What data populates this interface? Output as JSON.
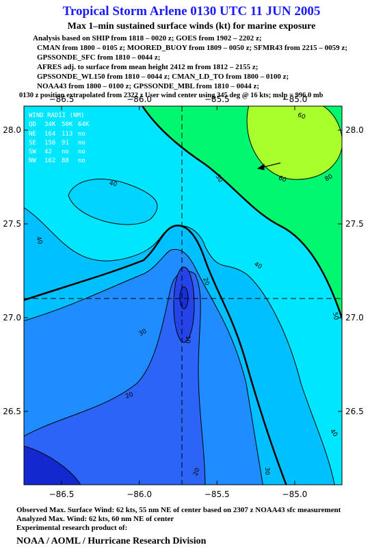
{
  "header": {
    "title": "Tropical Storm Arlene 0130 UTC 11 JUN 2005",
    "subtitle": "Max 1–min sustained surface winds (kt) for marine exposure",
    "notes": [
      "Analysis based on  SHIP from 1818 – 0020 z;  GOES from 1902 – 2202 z;",
      "CMAN from 1800 – 0105 z;  MOORED_BUOY from 1809 – 0050 z;  SFMR43 from 2215 – 0059 z;",
      "GPSSONDE_SFC from 1810 – 0044 z;",
      "AFRES adj. to surface from mean height 2412 m from 1812 – 2155 z;",
      "GPSSONDE_WL150 from 1810 – 0044 z;  CMAN_LD_TO from 1800 – 0100 z;",
      "NOAA43 from 1800 – 0100 z;  GPSSONDE_MBL from 1810 – 0044 z;",
      "0130 z position extrapolated from 2322 z User wind center using 345 deg @ 16 kts; mslp = 996.0 mb"
    ]
  },
  "map": {
    "xlim": [
      -86.742,
      -84.696
    ],
    "ylim": [
      26.109,
      28.128
    ],
    "xticks": [
      {
        "value": -86.5,
        "label": "−86.5"
      },
      {
        "value": -86.0,
        "label": "−86.0"
      },
      {
        "value": -85.5,
        "label": "−85.5"
      },
      {
        "value": -85.0,
        "label": "−85.0"
      }
    ],
    "yticks": [
      {
        "value": 26.5,
        "label": "26.5"
      },
      {
        "value": 27.0,
        "label": "27.0"
      },
      {
        "value": 27.5,
        "label": "27.5"
      },
      {
        "value": 28.0,
        "label": "28.0"
      }
    ],
    "contour_labels": [
      60,
      80,
      60,
      50,
      40,
      40,
      40,
      50,
      20,
      10,
      30,
      20,
      20,
      30,
      40
    ],
    "wind_radii": {
      "title": "WIND RADII (NM)",
      "header": [
        "QD",
        "34K",
        "50K",
        "64K"
      ],
      "rows": [
        [
          "NE",
          "164",
          "113",
          "no"
        ],
        [
          "SE",
          "156",
          "91",
          "no"
        ],
        [
          "SW",
          "42",
          "no",
          "no"
        ],
        [
          "NW",
          "162",
          "88",
          "no"
        ]
      ]
    }
  },
  "footer": {
    "lines": [
      "Observed Max. Surface Wind: 62 kts, 55 nm NE of center based on 2307 z NOAA43 sfc measurement",
      "Analyzed Max. Wind: 62 kts, 60 nm NE of center",
      "Experimental research product of:"
    ],
    "org": "NOAA / AOML / Hurricane Research Division"
  }
}
